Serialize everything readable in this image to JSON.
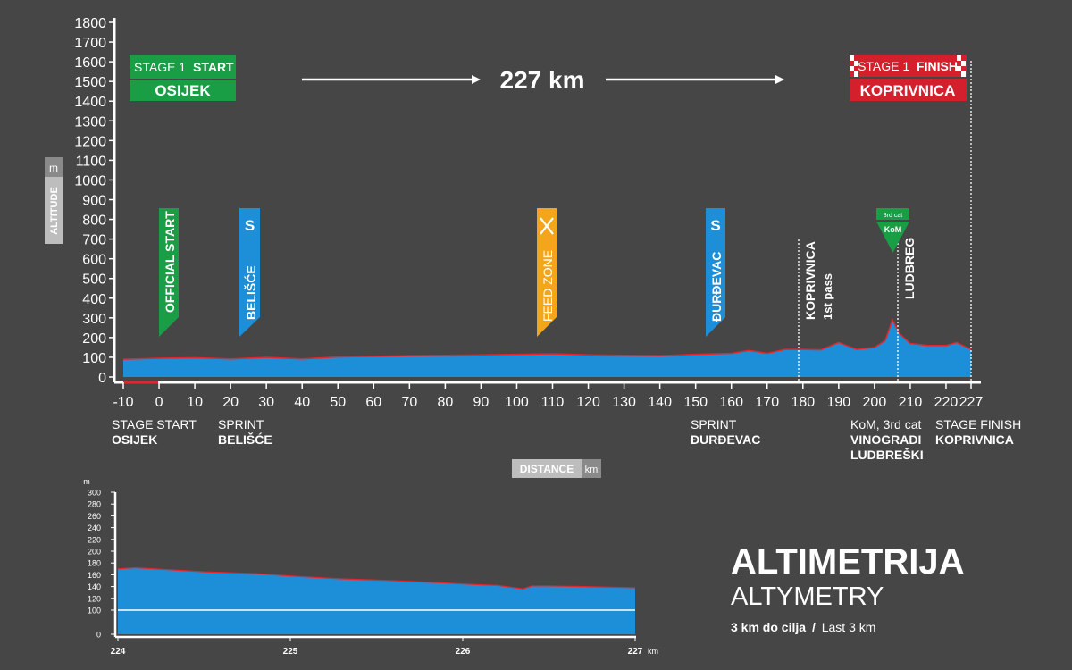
{
  "main_profile": {
    "start_label": {
      "line1_prefix": "STAGE 1",
      "line1_bold": "START",
      "city": "OSIJEK"
    },
    "finish_label": {
      "line1_prefix": "STAGE 1",
      "line1_bold": "FINISH",
      "city": "KOPRIVNICA"
    },
    "distance_total": "227 km",
    "axis_y_unit": "m",
    "axis_y_title": "ALTITUDE",
    "axis_x_title": "DISTANCE",
    "axis_x_unit": "km",
    "markers": [
      {
        "text": "OFFICIAL START",
        "color": "#1a9e45"
      },
      {
        "icon": "S",
        "text": "BELIŠĆE",
        "color": "#1c8fd8"
      },
      {
        "text": "FEED ZONE",
        "color": "#f4a51c"
      },
      {
        "icon": "S",
        "text": "ĐURĐEVAC",
        "color": "#1c8fd8"
      }
    ],
    "dashed_labels": [
      {
        "text": "KOPRIVNICA",
        "sub": "1st pass"
      },
      {
        "text": "LUDBREG"
      }
    ],
    "kom": {
      "cat": "3rd cat",
      "label": "KoM"
    },
    "bottom_labels": [
      {
        "line1": "STAGE START",
        "line2": "OSIJEK"
      },
      {
        "line1": "SPRINT",
        "line2": "BELIŠĆE"
      },
      {
        "line1": "SPRINT",
        "line2": "ĐURĐEVAC"
      },
      {
        "line1": "KoM, 3rd cat",
        "line2": "VINOGRADI",
        "line3": "LUDBREŠKI"
      },
      {
        "line1": "STAGE FINISH",
        "line2": "KOPRIVNICA"
      }
    ]
  },
  "chart_data": [
    {
      "type": "area",
      "xlabel": "DISTANCE",
      "ylabel": "ALTITUDE",
      "xlim": [
        -10,
        227
      ],
      "ylim": [
        0,
        1800
      ],
      "x_ticks": [
        -10,
        0,
        10,
        20,
        30,
        40,
        50,
        60,
        70,
        80,
        90,
        100,
        110,
        120,
        130,
        140,
        150,
        160,
        170,
        180,
        190,
        200,
        210,
        220,
        227
      ],
      "y_ticks": [
        0,
        100,
        200,
        300,
        400,
        500,
        600,
        700,
        800,
        900,
        1000,
        1100,
        1200,
        1300,
        1400,
        1500,
        1600,
        1700,
        1800
      ],
      "x": [
        -10,
        0,
        10,
        20,
        30,
        40,
        50,
        60,
        70,
        80,
        90,
        100,
        110,
        120,
        130,
        140,
        150,
        160,
        165,
        170,
        175,
        180,
        185,
        190,
        195,
        200,
        203,
        205,
        207,
        210,
        215,
        220,
        223,
        227
      ],
      "y": [
        90,
        95,
        98,
        92,
        100,
        92,
        102,
        105,
        108,
        110,
        112,
        115,
        118,
        112,
        110,
        108,
        115,
        120,
        135,
        120,
        140,
        140,
        138,
        175,
        140,
        150,
        185,
        290,
        220,
        170,
        160,
        160,
        175,
        140
      ],
      "grid": false
    },
    {
      "type": "area",
      "x_unit": "km",
      "y_unit": "m",
      "xlim": [
        224,
        227
      ],
      "ylim": [
        0,
        300
      ],
      "x_ticks": [
        224,
        225,
        226,
        227
      ],
      "y_ticks": [
        0,
        100,
        120,
        140,
        160,
        180,
        200,
        220,
        240,
        260,
        280,
        300
      ],
      "x": [
        224,
        224.1,
        224.5,
        224.8,
        225.0,
        225.3,
        225.6,
        225.9,
        226.1,
        226.2,
        226.35,
        226.4,
        226.5,
        226.7,
        227
      ],
      "y": [
        170,
        172,
        165,
        162,
        158,
        153,
        150,
        146,
        143,
        142,
        136,
        141,
        141,
        140,
        138
      ],
      "reference_line": 100
    }
  ],
  "zoom_profile": {
    "axis_y_unit": "m",
    "axis_x_unit": "km"
  },
  "title": {
    "main": "ALTIMETRIJA",
    "sub": "ALTYMETRY",
    "caption_bold": "3 km do cilja",
    "caption_sep": "/",
    "caption_rest": "Last 3 km"
  },
  "colors": {
    "profile_fill": "#1c8fd8",
    "profile_line": "#e3262d",
    "start_green": "#1a9e45",
    "finish_red": "#d4202d",
    "feed_orange": "#f4a51c"
  }
}
